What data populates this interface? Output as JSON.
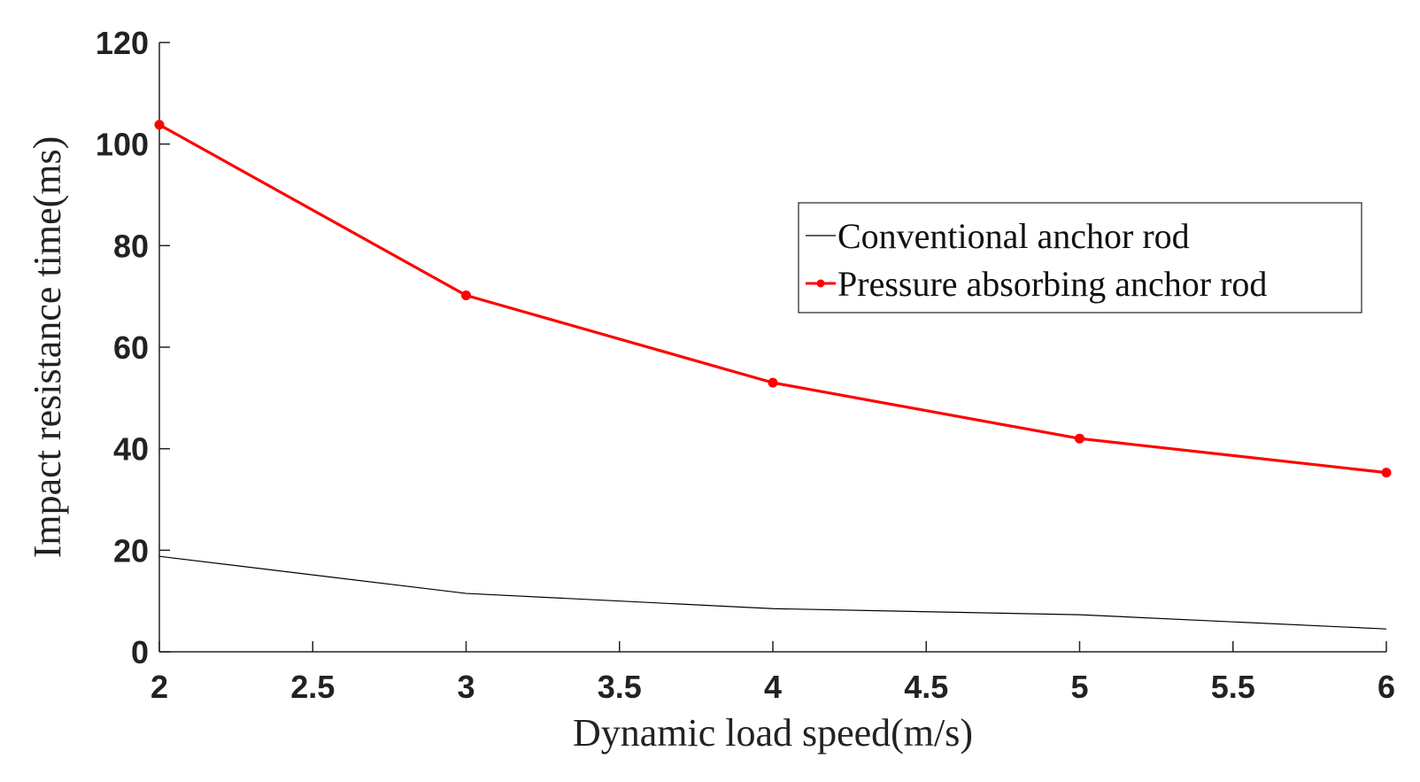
{
  "chart_data": {
    "type": "line",
    "title": "",
    "xlabel": "Dynamic load speed(m/s)",
    "ylabel": "Impact resistance time(ms)",
    "xlim": [
      2,
      6
    ],
    "ylim": [
      0,
      120
    ],
    "xticks": [
      "2",
      "2.5",
      "3",
      "3.5",
      "4",
      "4.5",
      "5",
      "5.5",
      "6"
    ],
    "yticks": [
      "0",
      "20",
      "40",
      "60",
      "80",
      "100",
      "120"
    ],
    "x": [
      2,
      3,
      4,
      5,
      6
    ],
    "grid": false,
    "legend_position": "top-right",
    "series": [
      {
        "name": "Conventional anchor rod",
        "values": [
          18.8,
          11.5,
          8.5,
          7.3,
          4.5
        ],
        "color": "#000000",
        "marker": "none"
      },
      {
        "name": "Pressure absorbing anchor rod",
        "values": [
          103.8,
          70.2,
          53,
          42,
          35.3
        ],
        "color": "#ff0000",
        "marker": "dot"
      }
    ]
  }
}
